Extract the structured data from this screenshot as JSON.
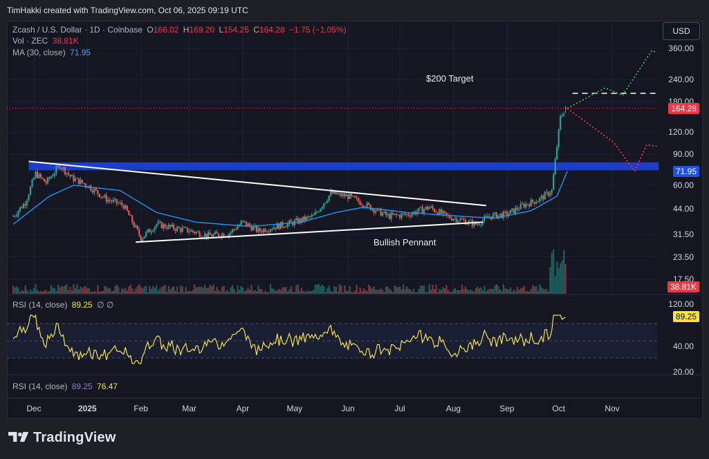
{
  "attribution": "TimHakki created with TradingView.com, Oct 06, 2025 09:19 UTC",
  "header": {
    "symbol": "Zcash / U.S. Dollar · 1D · Coinbase",
    "o_label": "O",
    "o_value": "166.02",
    "h_label": "H",
    "h_value": "169.20",
    "l_label": "L",
    "l_value": "154.25",
    "c_label": "C",
    "c_value": "164.28",
    "change": "−1.75 (−1.05%)",
    "vol_label": "Vol · ZEC",
    "vol_value": "38.81K",
    "ma_label": "MA (30, close)",
    "ma_value": "71.95"
  },
  "currency_button": "USD",
  "annotations": {
    "target": "$200 Target",
    "pattern": "Bullish Pennant"
  },
  "rsi_panel_1": {
    "label": "RSI (14, close)",
    "value": "89.25",
    "extra": "∅ ∅"
  },
  "rsi_panel_2": {
    "label": "RSI (14, close)",
    "value1": "89.25",
    "value2": "76.47"
  },
  "badges": {
    "last_price": "164.28",
    "ma": "71.95",
    "volume": "38.81K",
    "rsi": "89.25"
  },
  "logo_text": "TradingView",
  "colors": {
    "up": "#26a69a",
    "down": "#ef5350",
    "ma": "#2196f3",
    "zone": "#1e3fd1",
    "rsi": "#f5e14a",
    "bull_path": "#4caf50",
    "bear_path": "#f23645"
  },
  "chart_data": {
    "type": "candlestick",
    "price_axis": {
      "scale": "log",
      "ticks": [
        "360.00",
        "240.00",
        "180.00",
        "120.00",
        "90.00",
        "60.00",
        "44.00",
        "31.50",
        "23.50",
        "17.50"
      ]
    },
    "rsi_axis": {
      "ticks": [
        "120.00",
        "40.00",
        "20.00"
      ]
    },
    "x_axis": {
      "ticks": [
        {
          "label": "Dec",
          "date": "2024-12-01"
        },
        {
          "label": "2025",
          "date": "2025-01-01",
          "bold": true
        },
        {
          "label": "Feb",
          "date": "2025-02-01"
        },
        {
          "label": "Mar",
          "date": "2025-03-01"
        },
        {
          "label": "Apr",
          "date": "2025-04-01"
        },
        {
          "label": "May",
          "date": "2025-05-01"
        },
        {
          "label": "Jun",
          "date": "2025-06-01"
        },
        {
          "label": "Jul",
          "date": "2025-07-01"
        },
        {
          "label": "Aug",
          "date": "2025-08-01"
        },
        {
          "label": "Sep",
          "date": "2025-09-01"
        },
        {
          "label": "Oct",
          "date": "2025-10-01"
        },
        {
          "label": "Nov",
          "date": "2025-11-01"
        }
      ]
    },
    "price_path": [
      [
        "2024-11-19",
        40
      ],
      [
        "2024-11-26",
        48
      ],
      [
        "2024-12-02",
        70
      ],
      [
        "2024-12-08",
        62
      ],
      [
        "2024-12-16",
        78
      ],
      [
        "2024-12-23",
        66
      ],
      [
        "2025-01-01",
        60
      ],
      [
        "2025-01-12",
        50
      ],
      [
        "2025-01-22",
        46
      ],
      [
        "2025-02-01",
        30
      ],
      [
        "2025-02-10",
        36
      ],
      [
        "2025-02-22",
        34
      ],
      [
        "2025-03-02",
        33
      ],
      [
        "2025-03-12",
        31
      ],
      [
        "2025-03-24",
        32
      ],
      [
        "2025-04-01",
        37
      ],
      [
        "2025-04-10",
        33
      ],
      [
        "2025-04-20",
        35
      ],
      [
        "2025-05-01",
        37
      ],
      [
        "2025-05-12",
        40
      ],
      [
        "2025-05-22",
        54
      ],
      [
        "2025-06-01",
        52
      ],
      [
        "2025-06-12",
        46
      ],
      [
        "2025-06-24",
        40
      ],
      [
        "2025-07-06",
        41
      ],
      [
        "2025-07-18",
        45
      ],
      [
        "2025-07-28",
        40
      ],
      [
        "2025-08-06",
        38
      ],
      [
        "2025-08-14",
        36
      ],
      [
        "2025-08-22",
        40
      ],
      [
        "2025-09-01",
        41
      ],
      [
        "2025-09-10",
        46
      ],
      [
        "2025-09-20",
        50
      ],
      [
        "2025-09-27",
        56
      ],
      [
        "2025-09-30",
        100
      ],
      [
        "2025-10-02",
        145
      ],
      [
        "2025-10-05",
        164.28
      ]
    ],
    "ma_path": [
      [
        "2024-11-19",
        36
      ],
      [
        "2024-12-10",
        52
      ],
      [
        "2024-12-24",
        60
      ],
      [
        "2025-01-20",
        56
      ],
      [
        "2025-02-10",
        42
      ],
      [
        "2025-03-05",
        37
      ],
      [
        "2025-04-05",
        35
      ],
      [
        "2025-05-05",
        37
      ],
      [
        "2025-05-25",
        42
      ],
      [
        "2025-06-10",
        45
      ],
      [
        "2025-07-05",
        42
      ],
      [
        "2025-08-05",
        40
      ],
      [
        "2025-08-25",
        39
      ],
      [
        "2025-09-15",
        43
      ],
      [
        "2025-09-30",
        52
      ],
      [
        "2025-10-06",
        71.95
      ]
    ],
    "zone": {
      "from": "2024-11-28",
      "to": "2025-11-28",
      "low": 73,
      "high": 81
    },
    "target_line": {
      "price": 200,
      "from": "2025-10-09",
      "to": "2025-11-28"
    },
    "pennant_upper": [
      [
        "2024-11-28",
        82
      ],
      [
        "2025-08-20",
        46
      ]
    ],
    "pennant_lower": [
      [
        "2025-01-29",
        28.5
      ],
      [
        "2025-08-18",
        37
      ]
    ],
    "bull_projection": [
      [
        "2025-10-06",
        164
      ],
      [
        "2025-10-28",
        215
      ],
      [
        "2025-11-07",
        195
      ],
      [
        "2025-11-24",
        350
      ],
      [
        "2025-11-27",
        340
      ]
    ],
    "bear_projection": [
      [
        "2025-10-06",
        164
      ],
      [
        "2025-11-02",
        105
      ],
      [
        "2025-11-14",
        72
      ],
      [
        "2025-11-21",
        102
      ],
      [
        "2025-11-27",
        100
      ]
    ],
    "volume_last": "38.81K",
    "rsi_last": 89.25,
    "rsi2_values": [
      89.25,
      76.47
    ]
  }
}
